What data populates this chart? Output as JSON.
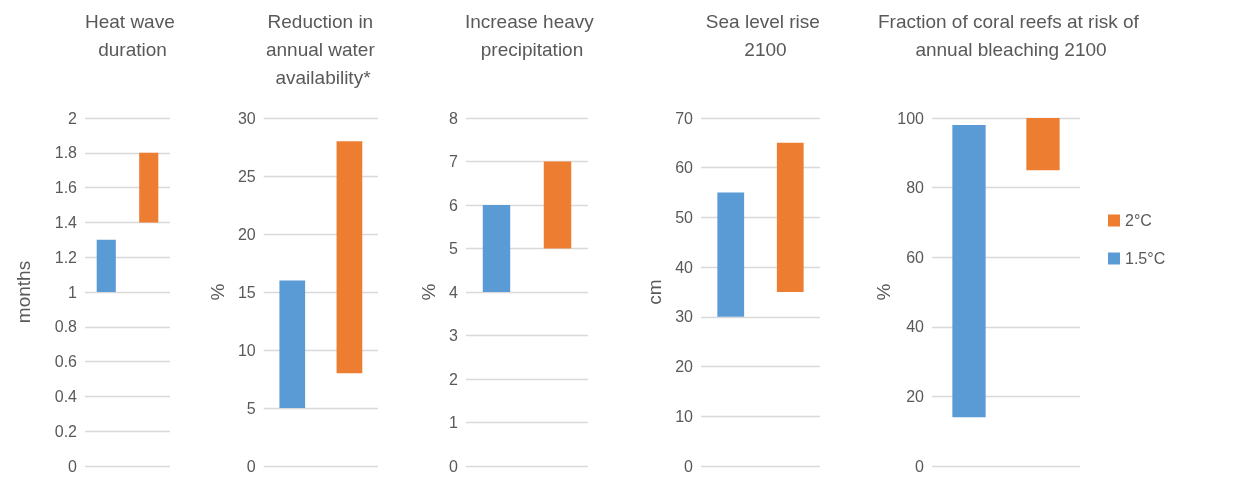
{
  "chart_data": [
    {
      "type": "bar",
      "title": "Heat wave duration",
      "ylabel": "months",
      "categories": [
        null,
        null
      ],
      "values": [
        0.3,
        0.4
      ],
      "base": [
        1,
        1.4
      ],
      "colors": [
        "#5b9bd5",
        "#ed7d31"
      ],
      "ylim": [
        0,
        2
      ],
      "yticks": [
        0,
        0.2,
        0.4,
        0.6,
        0.8,
        1,
        1.2,
        1.4,
        1.6,
        1.8,
        2
      ],
      "grid": "y",
      "tick_labels": "y"
    },
    {
      "type": "bar",
      "title": "Reduction in annual water availability*",
      "ylabel": "%",
      "categories": [
        null,
        null
      ],
      "values": [
        11,
        20
      ],
      "base": [
        5,
        8
      ],
      "colors": [
        "#5b9bd5",
        "#ed7d31"
      ],
      "ylim": [
        0,
        30
      ],
      "yticks": [
        0,
        5,
        10,
        15,
        20,
        25,
        30
      ],
      "grid": "y",
      "tick_labels": "y"
    },
    {
      "type": "bar",
      "title": "Increase heavy precipitation",
      "ylabel": "%",
      "categories": [
        null,
        null
      ],
      "values": [
        2,
        2
      ],
      "base": [
        4,
        5
      ],
      "colors": [
        "#5b9bd5",
        "#ed7d31"
      ],
      "ylim": [
        0,
        8
      ],
      "yticks": [
        0,
        1,
        2,
        3,
        4,
        5,
        6,
        7,
        8
      ],
      "grid": "y",
      "tick_labels": "y"
    },
    {
      "type": "bar",
      "title": "Sea level rise 2100",
      "ylabel": "cm",
      "categories": [
        null,
        null
      ],
      "values": [
        25,
        30
      ],
      "base": [
        30,
        35
      ],
      "colors": [
        "#5b9bd5",
        "#ed7d31"
      ],
      "ylim": [
        0,
        70
      ],
      "yticks": [
        0,
        10,
        20,
        30,
        40,
        50,
        60,
        70
      ],
      "grid": "y",
      "tick_labels": "y"
    },
    {
      "type": "bar",
      "title": "Fraction of coral reefs at risk of annual bleaching 2100",
      "ylabel": "%",
      "categories": [
        null,
        null
      ],
      "series": [
        {
          "name": "1.5°C",
          "color": "#5b9bd5",
          "values": [
            84,
            null
          ],
          "base": [
            14,
            null
          ]
        },
        {
          "name": "2°C",
          "color": "#ed7d31",
          "values": [
            null,
            15
          ],
          "base": [
            null,
            85
          ]
        }
      ],
      "ylim": [
        0,
        100
      ],
      "yticks": [
        0,
        20,
        40,
        60,
        80,
        100
      ],
      "grid": "y",
      "tick_labels": "y",
      "legend": "right"
    }
  ]
}
